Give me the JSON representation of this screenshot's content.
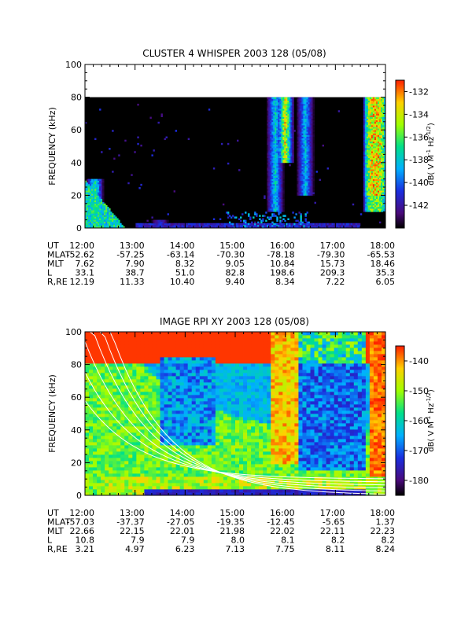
{
  "chart_data": [
    {
      "type": "heatmap",
      "title": "CLUSTER 4 WHISPER 2003 128 (05/08)",
      "ylabel": "FREQUENCY (kHz)",
      "ylim": [
        0,
        100
      ],
      "yticks": [
        "0",
        "20",
        "40",
        "60",
        "80",
        "100"
      ],
      "data_ceiling_khz": 80,
      "colorbar": {
        "label": "dB( V M",
        "label_exponent1": "-1",
        "label_mid": " Hz",
        "label_exponent2": "-1/2",
        "label_end": ")",
        "range": [
          -144,
          -131
        ],
        "ticks": [
          "-132",
          "-134",
          "-136",
          "-138",
          "-140",
          "-142"
        ]
      },
      "ephemeris": {
        "row_labels": [
          "UT",
          "MLAT",
          "MLT",
          "L",
          "R,RE"
        ],
        "UT": [
          "12:00",
          "13:00",
          "14:00",
          "15:00",
          "16:00",
          "17:00",
          "18:00"
        ],
        "MLAT": [
          "-52.62",
          "-57.25",
          "-63.14",
          "-70.30",
          "-78.18",
          "-79.30",
          "-65.53"
        ],
        "MLT": [
          "7.62",
          "7.90",
          "8.32",
          "9.05",
          "10.84",
          "15.73",
          "18.46"
        ],
        "L": [
          "33.1",
          "38.7",
          "51.0",
          "82.8",
          "198.6",
          "209.3",
          "35.3"
        ],
        "R,RE": [
          "12.19",
          "11.33",
          "10.40",
          "9.40",
          "8.34",
          "7.22",
          "6.05"
        ]
      },
      "features": [
        {
          "t": 12.2,
          "f_low": 0,
          "f_high": 30,
          "intensity": 0.7
        },
        {
          "t": 13.5,
          "f_low": 0,
          "f_high": 5,
          "intensity": 0.3
        },
        {
          "t": 15.8,
          "f_low": 10,
          "f_high": 80,
          "intensity": 0.6
        },
        {
          "t": 16.0,
          "f_low": 40,
          "f_high": 80,
          "intensity": 1.0
        },
        {
          "t": 16.4,
          "f_low": 20,
          "f_high": 80,
          "intensity": 0.55
        },
        {
          "t": 17.8,
          "f_low": 10,
          "f_high": 80,
          "intensity": 1.0
        }
      ]
    },
    {
      "type": "heatmap",
      "title": "IMAGE RPI XY 2003 128 (05/08)",
      "ylabel": "FREQUENCY (kHz)",
      "ylim": [
        0,
        100
      ],
      "yticks": [
        "0",
        "20",
        "40",
        "60",
        "80",
        "100"
      ],
      "colorbar": {
        "label": "dB( V M",
        "label_exponent1": "-1",
        "label_mid": " Hz",
        "label_exponent2": "-1/2",
        "label_end": ")",
        "range": [
          -185,
          -135
        ],
        "ticks": [
          "-140",
          "-150",
          "-160",
          "-170",
          "-180"
        ]
      },
      "ephemeris": {
        "row_labels": [
          "UT",
          "MLAT",
          "MLT",
          "L",
          "R,RE"
        ],
        "UT": [
          "12:00",
          "13:00",
          "14:00",
          "15:00",
          "16:00",
          "17:00",
          "18:00"
        ],
        "MLAT": [
          "-57.03",
          "-37.37",
          "-27.05",
          "-19.35",
          "-12.45",
          "-5.65",
          "1.37"
        ],
        "MLT": [
          "22.66",
          "22.15",
          "22.01",
          "21.98",
          "22.02",
          "22.11",
          "22.23"
        ],
        "L": [
          "10.8",
          "7.9",
          "7.9",
          "8.0",
          "8.1",
          "8.2",
          "8.2"
        ],
        "R,RE": [
          "3.21",
          "4.97",
          "6.23",
          "7.13",
          "7.75",
          "8.11",
          "8.24"
        ]
      }
    }
  ]
}
